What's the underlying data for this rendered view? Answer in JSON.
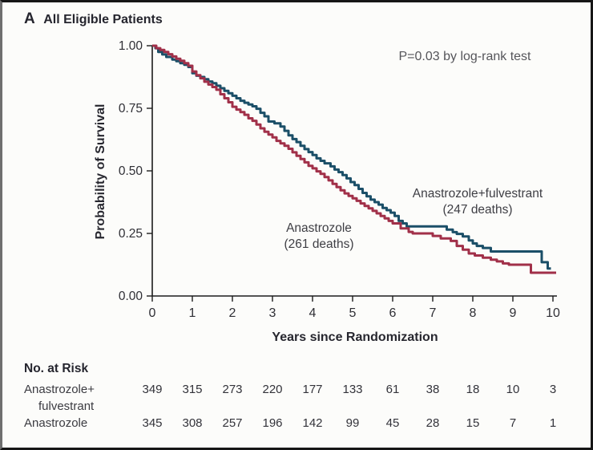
{
  "panel": {
    "letter": "A",
    "title": "All Eligible Patients"
  },
  "chart_data": {
    "type": "line",
    "subtype": "kaplan-meier-step",
    "title": "All Eligible Patients",
    "xlabel": "Years since Randomization",
    "ylabel": "Probability of Survival",
    "annotation": "P=0.03 by log-rank test",
    "xlim": [
      0,
      10
    ],
    "ylim": [
      0.0,
      1.0
    ],
    "xtick_labels": [
      "0",
      "1",
      "2",
      "3",
      "4",
      "5",
      "6",
      "7",
      "8",
      "9",
      "10"
    ],
    "ytick_labels": [
      "1.00",
      "0.75",
      "0.50",
      "0.25",
      "0.00"
    ],
    "ytick_values": [
      1.0,
      0.75,
      0.5,
      0.25,
      0.0
    ],
    "grid": false,
    "legend_position": "inline-annotations",
    "axis_color": "#1c1c1c",
    "series": [
      {
        "name": "Anastrozole+fulvestrant",
        "label_line1": "Anastrozole+fulvestrant",
        "label_line2": "(247 deaths)",
        "color": "#1b4f68",
        "points": [
          [
            0,
            1.0
          ],
          [
            0.08,
            0.99
          ],
          [
            0.15,
            0.975
          ],
          [
            0.25,
            0.965
          ],
          [
            0.35,
            0.955
          ],
          [
            0.5,
            0.945
          ],
          [
            0.6,
            0.938
          ],
          [
            0.7,
            0.93
          ],
          [
            0.8,
            0.924
          ],
          [
            0.9,
            0.915
          ],
          [
            1.0,
            0.89
          ],
          [
            1.1,
            0.88
          ],
          [
            1.2,
            0.875
          ],
          [
            1.3,
            0.866
          ],
          [
            1.4,
            0.857
          ],
          [
            1.5,
            0.85
          ],
          [
            1.6,
            0.84
          ],
          [
            1.7,
            0.83
          ],
          [
            1.8,
            0.82
          ],
          [
            1.9,
            0.81
          ],
          [
            2.0,
            0.8
          ],
          [
            2.1,
            0.79
          ],
          [
            2.2,
            0.78
          ],
          [
            2.3,
            0.772
          ],
          [
            2.4,
            0.765
          ],
          [
            2.5,
            0.758
          ],
          [
            2.6,
            0.748
          ],
          [
            2.7,
            0.732
          ],
          [
            2.8,
            0.718
          ],
          [
            2.9,
            0.697
          ],
          [
            3.05,
            0.69
          ],
          [
            3.2,
            0.677
          ],
          [
            3.3,
            0.66
          ],
          [
            3.4,
            0.642
          ],
          [
            3.5,
            0.627
          ],
          [
            3.6,
            0.615
          ],
          [
            3.7,
            0.6
          ],
          [
            3.8,
            0.587
          ],
          [
            3.9,
            0.575
          ],
          [
            4.0,
            0.563
          ],
          [
            4.1,
            0.55
          ],
          [
            4.2,
            0.54
          ],
          [
            4.3,
            0.53
          ],
          [
            4.45,
            0.518
          ],
          [
            4.55,
            0.505
          ],
          [
            4.65,
            0.495
          ],
          [
            4.75,
            0.483
          ],
          [
            4.85,
            0.47
          ],
          [
            4.95,
            0.455
          ],
          [
            5.05,
            0.443
          ],
          [
            5.15,
            0.428
          ],
          [
            5.25,
            0.412
          ],
          [
            5.35,
            0.398
          ],
          [
            5.45,
            0.385
          ],
          [
            5.55,
            0.375
          ],
          [
            5.65,
            0.365
          ],
          [
            5.75,
            0.352
          ],
          [
            5.85,
            0.343
          ],
          [
            5.95,
            0.333
          ],
          [
            6.05,
            0.32
          ],
          [
            6.15,
            0.3
          ],
          [
            6.25,
            0.29
          ],
          [
            6.35,
            0.278
          ],
          [
            7.35,
            0.265
          ],
          [
            7.5,
            0.255
          ],
          [
            7.6,
            0.248
          ],
          [
            7.75,
            0.238
          ],
          [
            7.9,
            0.222
          ],
          [
            8.0,
            0.21
          ],
          [
            8.1,
            0.2
          ],
          [
            8.25,
            0.192
          ],
          [
            8.45,
            0.178
          ],
          [
            9.72,
            0.135
          ],
          [
            9.87,
            0.11
          ],
          [
            9.95,
            0.11
          ]
        ]
      },
      {
        "name": "Anastrozole",
        "label_line1": "Anastrozole",
        "label_line2": "(261 deaths)",
        "color": "#a13049",
        "points": [
          [
            0,
            1.0
          ],
          [
            0.1,
            0.99
          ],
          [
            0.2,
            0.983
          ],
          [
            0.3,
            0.975
          ],
          [
            0.4,
            0.966
          ],
          [
            0.5,
            0.957
          ],
          [
            0.6,
            0.948
          ],
          [
            0.7,
            0.94
          ],
          [
            0.8,
            0.93
          ],
          [
            0.9,
            0.92
          ],
          [
            1.0,
            0.897
          ],
          [
            1.1,
            0.882
          ],
          [
            1.2,
            0.87
          ],
          [
            1.3,
            0.856
          ],
          [
            1.4,
            0.845
          ],
          [
            1.5,
            0.835
          ],
          [
            1.6,
            0.824
          ],
          [
            1.7,
            0.806
          ],
          [
            1.8,
            0.79
          ],
          [
            1.9,
            0.774
          ],
          [
            2.0,
            0.756
          ],
          [
            2.1,
            0.745
          ],
          [
            2.2,
            0.735
          ],
          [
            2.3,
            0.724
          ],
          [
            2.4,
            0.71
          ],
          [
            2.5,
            0.7
          ],
          [
            2.6,
            0.685
          ],
          [
            2.7,
            0.67
          ],
          [
            2.8,
            0.656
          ],
          [
            2.9,
            0.645
          ],
          [
            3.0,
            0.634
          ],
          [
            3.1,
            0.62
          ],
          [
            3.2,
            0.61
          ],
          [
            3.3,
            0.6
          ],
          [
            3.4,
            0.588
          ],
          [
            3.5,
            0.574
          ],
          [
            3.6,
            0.56
          ],
          [
            3.7,
            0.547
          ],
          [
            3.8,
            0.534
          ],
          [
            3.9,
            0.52
          ],
          [
            4.0,
            0.51
          ],
          [
            4.1,
            0.498
          ],
          [
            4.2,
            0.488
          ],
          [
            4.3,
            0.475
          ],
          [
            4.4,
            0.462
          ],
          [
            4.5,
            0.448
          ],
          [
            4.6,
            0.435
          ],
          [
            4.7,
            0.422
          ],
          [
            4.8,
            0.41
          ],
          [
            4.9,
            0.4
          ],
          [
            5.0,
            0.39
          ],
          [
            5.1,
            0.38
          ],
          [
            5.2,
            0.37
          ],
          [
            5.3,
            0.36
          ],
          [
            5.4,
            0.35
          ],
          [
            5.5,
            0.34
          ],
          [
            5.6,
            0.33
          ],
          [
            5.7,
            0.32
          ],
          [
            5.8,
            0.31
          ],
          [
            5.9,
            0.3
          ],
          [
            6.0,
            0.29
          ],
          [
            6.2,
            0.27
          ],
          [
            6.4,
            0.256
          ],
          [
            6.5,
            0.25
          ],
          [
            7.0,
            0.24
          ],
          [
            7.2,
            0.23
          ],
          [
            7.45,
            0.22
          ],
          [
            7.6,
            0.2
          ],
          [
            7.75,
            0.185
          ],
          [
            7.9,
            0.17
          ],
          [
            8.05,
            0.162
          ],
          [
            8.25,
            0.153
          ],
          [
            8.45,
            0.145
          ],
          [
            8.6,
            0.138
          ],
          [
            8.75,
            0.13
          ],
          [
            8.9,
            0.125
          ],
          [
            9.45,
            0.093
          ],
          [
            10.08,
            0.093
          ]
        ]
      }
    ]
  },
  "risk_table": {
    "heading": "No. at Risk",
    "time_points": [
      0,
      1,
      2,
      3,
      4,
      5,
      6,
      7,
      8,
      9,
      10
    ],
    "rows": [
      {
        "label_line1": "Anastrozole+",
        "label_line2": "fulvestrant",
        "counts": [
          349,
          315,
          273,
          220,
          177,
          133,
          61,
          38,
          18,
          10,
          3
        ]
      },
      {
        "label_line1": "Anastrozole",
        "label_line2": "",
        "counts": [
          345,
          308,
          257,
          196,
          142,
          99,
          45,
          28,
          15,
          7,
          1
        ]
      }
    ]
  }
}
